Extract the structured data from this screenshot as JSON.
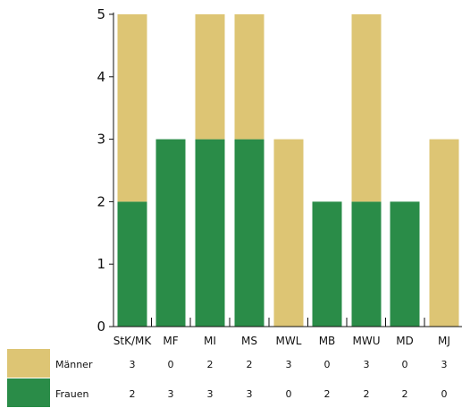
{
  "chart_data": {
    "type": "bar",
    "stacked": true,
    "categories": [
      "StK/MK",
      "MF",
      "MI",
      "MS",
      "MWL",
      "MB",
      "MWU",
      "MD",
      "MJ"
    ],
    "series": [
      {
        "name": "Frauen",
        "values": [
          2,
          3,
          3,
          3,
          0,
          2,
          2,
          2,
          0
        ],
        "color": "#2a8c48"
      },
      {
        "name": "Männer",
        "values": [
          3,
          0,
          2,
          2,
          3,
          0,
          3,
          0,
          3
        ],
        "color": "#ddc574"
      }
    ],
    "table_rows": [
      {
        "label": "Männer",
        "values": [
          "3",
          "0",
          "2",
          "2",
          "3",
          "0",
          "3",
          "0",
          "3"
        ],
        "color": "#ddc574"
      },
      {
        "label": "Frauen",
        "values": [
          "2",
          "3",
          "3",
          "3",
          "0",
          "2",
          "2",
          "2",
          "0"
        ],
        "color": "#2a8c48"
      }
    ],
    "yticks": [
      "0",
      "1",
      "2",
      "3",
      "4",
      "5"
    ],
    "ylim": [
      0,
      5
    ],
    "grid": false,
    "legend": "bottom-left table"
  }
}
